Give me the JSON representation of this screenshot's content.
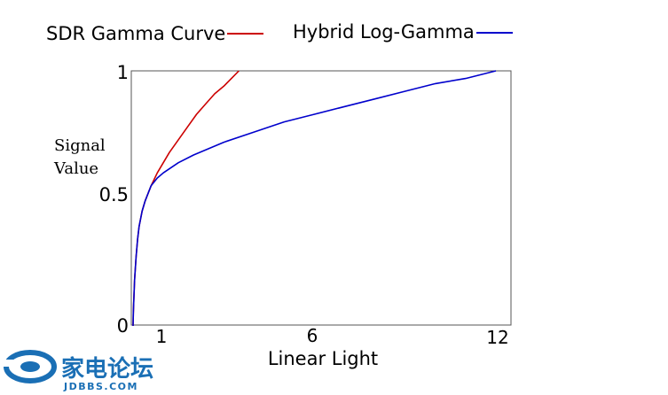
{
  "chart_data": {
    "type": "line",
    "title": "",
    "xlabel": "Linear Light",
    "ylabel": [
      "Signal",
      "Value"
    ],
    "xlim": [
      0,
      12
    ],
    "ylim": [
      0,
      1
    ],
    "x_ticks": [
      1,
      6,
      12
    ],
    "y_ticks": [
      0,
      0.5,
      1
    ],
    "y_tick_labels": [
      "0",
      "0.5",
      "1"
    ],
    "grid": false,
    "legend_position": "top",
    "series": [
      {
        "name": "SDR Gamma Curve",
        "color": "#cc0000",
        "x": [
          0,
          0.01,
          0.02,
          0.05,
          0.1,
          0.15,
          0.2,
          0.3,
          0.4,
          0.5,
          0.6,
          0.8,
          1.0,
          1.2,
          1.5,
          1.8,
          2.1,
          2.4,
          2.7,
          3.0,
          3.5
        ],
        "y": [
          0,
          0.05,
          0.09,
          0.18,
          0.27,
          0.34,
          0.39,
          0.45,
          0.49,
          0.52,
          0.55,
          0.6,
          0.64,
          0.68,
          0.73,
          0.78,
          0.83,
          0.87,
          0.91,
          0.94,
          1.0
        ]
      },
      {
        "name": "Hybrid Log-Gamma",
        "color": "#0000cc",
        "x": [
          0,
          0.01,
          0.02,
          0.05,
          0.1,
          0.15,
          0.2,
          0.3,
          0.4,
          0.5,
          0.6,
          0.8,
          1.0,
          1.5,
          2,
          3,
          4,
          5,
          6,
          7,
          8,
          9,
          10,
          11,
          12
        ],
        "y": [
          0,
          0.05,
          0.09,
          0.18,
          0.27,
          0.34,
          0.39,
          0.45,
          0.49,
          0.52,
          0.55,
          0.58,
          0.6,
          0.64,
          0.67,
          0.72,
          0.76,
          0.8,
          0.83,
          0.86,
          0.89,
          0.92,
          0.95,
          0.97,
          1.0
        ]
      }
    ]
  },
  "watermark": {
    "text_cn": "家电论坛",
    "text_url": "JDBBS.COM",
    "color": "#1a6fb5"
  }
}
